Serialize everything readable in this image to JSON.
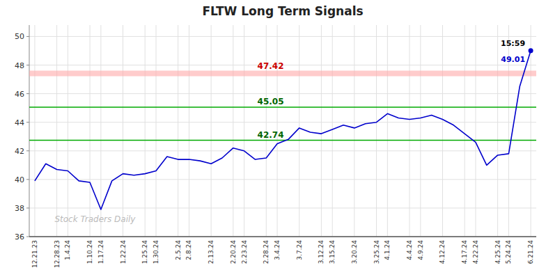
{
  "chart_data": {
    "type": "line",
    "title": "FLTW Long Term Signals",
    "categories": [
      "12.21.23",
      null,
      "12.28.23",
      "1.4.24",
      null,
      "1.10.24",
      "1.17.24",
      null,
      "1.22.24",
      null,
      "1.25.24",
      "1.30.24",
      null,
      "2.5.24",
      "2.8.24",
      null,
      "2.13.24",
      null,
      "2.20.24",
      "2.23.24",
      null,
      "2.28.24",
      "3.4.24",
      null,
      "3.7.24",
      null,
      "3.12.24",
      "3.15.24",
      null,
      "3.20.24",
      null,
      "3.25.24",
      "4.1.24",
      null,
      "4.4.24",
      "4.9.24",
      null,
      "4.12.24",
      null,
      "4.17.24",
      "4.22.24",
      null,
      "4.25.24",
      "5.24.24",
      null,
      "6.21.24"
    ],
    "values": [
      39.9,
      41.1,
      40.7,
      40.6,
      39.9,
      39.8,
      37.9,
      39.9,
      40.4,
      40.3,
      40.4,
      40.6,
      41.6,
      41.4,
      41.4,
      41.3,
      41.1,
      41.5,
      42.2,
      42.0,
      41.4,
      41.5,
      42.5,
      42.8,
      43.6,
      43.3,
      43.2,
      43.5,
      43.8,
      43.6,
      43.9,
      44.0,
      44.6,
      44.3,
      44.2,
      44.3,
      44.5,
      44.2,
      43.8,
      43.2,
      42.6,
      41.0,
      41.7,
      41.8,
      46.5,
      49.01
    ],
    "color": "#0000cc",
    "ylim": [
      36,
      50.8
    ],
    "yticks": [
      36,
      38,
      40,
      42,
      44,
      46,
      48,
      50
    ],
    "grid": true,
    "reference_lines": [
      {
        "value": 47.42,
        "label": "47.42",
        "color": "#ffaaaa",
        "label_color": "#cc0000"
      },
      {
        "value": 45.05,
        "label": "45.05",
        "color": "#00aa00",
        "label_color": "#006600"
      },
      {
        "value": 42.74,
        "label": "42.74",
        "color": "#00aa00",
        "label_color": "#006600"
      }
    ],
    "annotations": [
      {
        "text": "15:59",
        "color": "#000000"
      },
      {
        "text": "49.01",
        "value": 49.01,
        "color": "#0000cc"
      }
    ],
    "watermark": {
      "text": "Stock Traders Daily",
      "color": "#bbbbbb"
    }
  }
}
